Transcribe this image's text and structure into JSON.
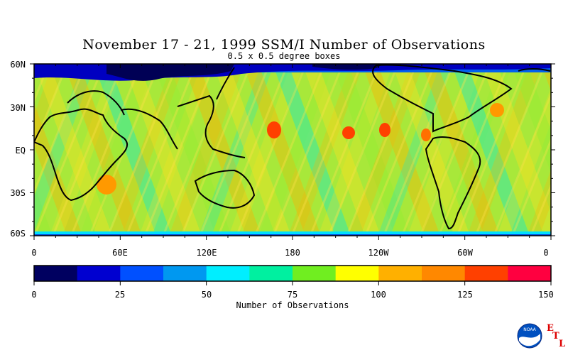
{
  "title": "November 17 - 21, 1999 SSM/I Number of Observations",
  "subtitle": "0.5 x 0.5 degree boxes",
  "latitude_labels": [
    "60N",
    "30N",
    "EQ",
    "30S",
    "60S"
  ],
  "longitude_labels": [
    "0",
    "60E",
    "120E",
    "180",
    "120W",
    "60W",
    "0"
  ],
  "colorbar": {
    "title": "Number of Observations",
    "tick_labels": [
      "0",
      "25",
      "50",
      "75",
      "100",
      "125",
      "150"
    ],
    "range": [
      0,
      150
    ],
    "colors": [
      "#000060",
      "#0000d0",
      "#0050ff",
      "#0098f0",
      "#00eeff",
      "#00f0a0",
      "#70ee20",
      "#ffff00",
      "#ffb000",
      "#ff8800",
      "#ff4000",
      "#ff0040"
    ]
  },
  "logo": {
    "org_text": "NOAA",
    "letters": [
      "E",
      "T",
      "L"
    ]
  }
}
